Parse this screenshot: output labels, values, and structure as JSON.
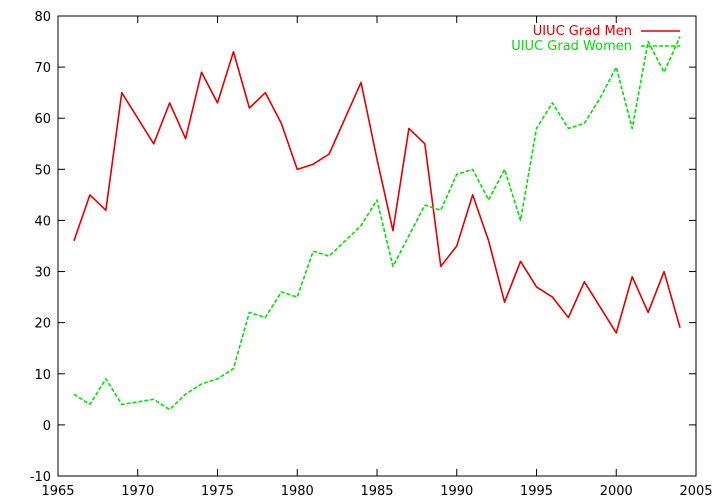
{
  "chart_data": {
    "type": "line",
    "title": "",
    "xlabel": "",
    "ylabel": "",
    "xlim": [
      1965,
      2005
    ],
    "ylim": [
      -10,
      80
    ],
    "x_ticks": [
      1965,
      1970,
      1975,
      1980,
      1985,
      1990,
      1995,
      2000,
      2005
    ],
    "y_ticks": [
      -10,
      0,
      10,
      20,
      30,
      40,
      50,
      60,
      70,
      80
    ],
    "grid": false,
    "legend_position": "top-right",
    "series": [
      {
        "name": "UIUC Grad Men",
        "color": "#e00000",
        "dash": "solid",
        "x": [
          1966,
          1967,
          1968,
          1969,
          1970,
          1971,
          1972,
          1973,
          1974,
          1975,
          1976,
          1977,
          1978,
          1979,
          1980,
          1981,
          1982,
          1983,
          1984,
          1985,
          1986,
          1987,
          1988,
          1989,
          1990,
          1991,
          1992,
          1993,
          1994,
          1995,
          1996,
          1997,
          1998,
          1999,
          2000,
          2001,
          2002,
          2003,
          2004
        ],
        "values": [
          36,
          45,
          42,
          65,
          60,
          55,
          63,
          56,
          69,
          63,
          73,
          62,
          65,
          59,
          50,
          51,
          53,
          60,
          67,
          52,
          38,
          58,
          55,
          31,
          35,
          45,
          36,
          24,
          32,
          27,
          25,
          21,
          28,
          23,
          18,
          29,
          22,
          30,
          19
        ]
      },
      {
        "name": "UIUC Grad Women",
        "color": "#00e000",
        "dash": "dashed",
        "x": [
          1966,
          1967,
          1968,
          1969,
          1970,
          1971,
          1972,
          1973,
          1974,
          1975,
          1976,
          1977,
          1978,
          1979,
          1980,
          1981,
          1982,
          1983,
          1984,
          1985,
          1986,
          1987,
          1988,
          1989,
          1990,
          1991,
          1992,
          1993,
          1994,
          1995,
          1996,
          1997,
          1998,
          1999,
          2000,
          2001,
          2002,
          2003,
          2004
        ],
        "values": [
          6,
          4,
          9,
          4,
          4.5,
          5,
          3,
          6,
          8,
          9,
          11,
          22,
          21,
          26,
          25,
          34,
          33,
          36,
          39,
          44,
          31,
          37,
          43,
          42,
          49,
          50,
          44,
          50,
          40,
          58,
          63,
          58,
          59,
          64,
          70,
          58,
          75,
          69,
          76
        ]
      }
    ]
  }
}
